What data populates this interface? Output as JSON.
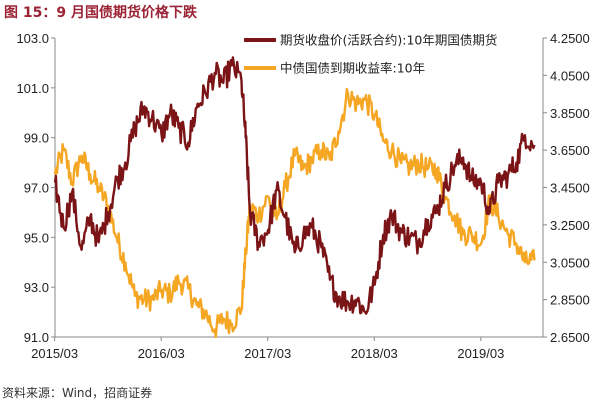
{
  "title": "图 15：9 月国债期货价格下跌",
  "source": "资料来源：Wind，招商证券",
  "colors": {
    "futures": "#7B1416",
    "yield": "#F5A623",
    "axis": "#888888",
    "title": "#9B2335"
  },
  "chart_data": {
    "type": "line",
    "title": "图 15：9 月国债期货价格下跌",
    "x_tick_labels": [
      "2015/03",
      "2016/03",
      "2017/03",
      "2018/03",
      "2019/03"
    ],
    "x_range": [
      "2015/03",
      "2019/09"
    ],
    "y_left": {
      "range": [
        91.0,
        103.0
      ],
      "ticks": [
        "91.0",
        "93.0",
        "95.0",
        "97.0",
        "99.0",
        "101.0",
        "103.0"
      ]
    },
    "y_right": {
      "range": [
        2.65,
        4.25
      ],
      "ticks": [
        "2.6500",
        "2.8500",
        "3.0500",
        "3.2500",
        "3.4500",
        "3.6500",
        "3.8500",
        "4.0500",
        "4.2500"
      ]
    },
    "grid": false,
    "legend_position": "top-right",
    "series": [
      {
        "name": "期货收盘价(活跃合约):10年期国债期货",
        "axis": "left",
        "color": "#7B1416",
        "x": [
          2015.17,
          2015.25,
          2015.33,
          2015.42,
          2015.5,
          2015.58,
          2015.67,
          2015.75,
          2015.83,
          2015.92,
          2016.0,
          2016.08,
          2016.17,
          2016.25,
          2016.33,
          2016.42,
          2016.5,
          2016.58,
          2016.67,
          2016.75,
          2016.83,
          2016.92,
          2016.96,
          2017.0,
          2017.08,
          2017.17,
          2017.25,
          2017.33,
          2017.42,
          2017.5,
          2017.58,
          2017.67,
          2017.75,
          2017.83,
          2017.92,
          2018.0,
          2018.08,
          2018.17,
          2018.25,
          2018.33,
          2018.42,
          2018.5,
          2018.58,
          2018.67,
          2018.75,
          2018.83,
          2018.92,
          2019.0,
          2019.08,
          2019.17,
          2019.25,
          2019.33,
          2019.42,
          2019.5,
          2019.58,
          2019.67
        ],
        "y": [
          97.2,
          95.4,
          96.8,
          94.5,
          95.8,
          94.8,
          96.0,
          97.3,
          98.0,
          99.4,
          100.2,
          99.8,
          99.1,
          100.0,
          99.4,
          98.8,
          100.2,
          100.8,
          101.6,
          101.2,
          101.9,
          101.3,
          99.0,
          96.0,
          94.8,
          95.3,
          96.9,
          95.8,
          94.4,
          95.1,
          95.4,
          94.6,
          93.3,
          92.6,
          92.4,
          92.5,
          92.0,
          93.1,
          95.1,
          95.9,
          95.2,
          95.0,
          94.8,
          95.7,
          96.0,
          97.0,
          97.9,
          98.2,
          97.3,
          97.2,
          96.0,
          97.2,
          97.5,
          98.0,
          99.1,
          98.7
        ]
      },
      {
        "name": "中债国债到期收益率:10年",
        "axis": "right",
        "color": "#F5A623",
        "x": [
          2015.17,
          2015.25,
          2015.33,
          2015.42,
          2015.5,
          2015.58,
          2015.67,
          2015.75,
          2015.83,
          2015.92,
          2016.0,
          2016.08,
          2016.17,
          2016.25,
          2016.33,
          2016.42,
          2016.5,
          2016.58,
          2016.67,
          2016.75,
          2016.83,
          2016.92,
          2016.96,
          2017.0,
          2017.08,
          2017.17,
          2017.25,
          2017.33,
          2017.42,
          2017.5,
          2017.58,
          2017.67,
          2017.75,
          2017.83,
          2017.92,
          2018.0,
          2018.08,
          2018.17,
          2018.25,
          2018.33,
          2018.42,
          2018.5,
          2018.58,
          2018.67,
          2018.75,
          2018.83,
          2018.92,
          2019.0,
          2019.08,
          2019.17,
          2019.25,
          2019.33,
          2019.42,
          2019.5,
          2019.58,
          2019.67
        ],
        "y": [
          3.52,
          3.65,
          3.48,
          3.62,
          3.52,
          3.45,
          3.35,
          3.18,
          3.05,
          2.87,
          2.85,
          2.85,
          2.9,
          2.88,
          2.95,
          2.91,
          2.82,
          2.78,
          2.69,
          2.75,
          2.72,
          2.8,
          3.1,
          3.35,
          3.3,
          3.4,
          3.28,
          3.45,
          3.62,
          3.55,
          3.6,
          3.65,
          3.6,
          3.75,
          3.95,
          3.9,
          3.92,
          3.84,
          3.7,
          3.65,
          3.58,
          3.56,
          3.58,
          3.55,
          3.55,
          3.4,
          3.3,
          3.2,
          3.2,
          3.15,
          3.38,
          3.3,
          3.2,
          3.15,
          3.05,
          3.06
        ]
      }
    ]
  }
}
